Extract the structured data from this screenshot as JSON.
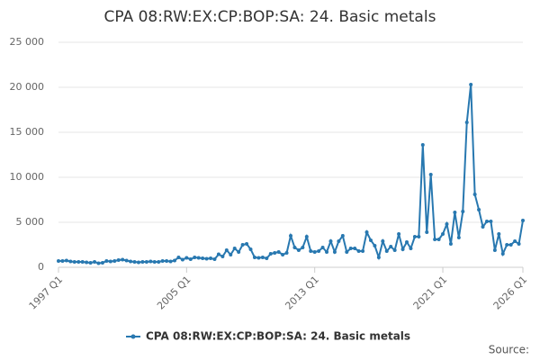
{
  "chart_data": {
    "type": "line",
    "title": "CPA 08:RW:EX:CP:BOP:SA: 24. Basic metals",
    "source": "Source:",
    "categories": [
      "1997 Q1",
      null,
      null,
      null,
      null,
      null,
      null,
      null,
      null,
      null,
      null,
      null,
      null,
      null,
      null,
      null,
      null,
      null,
      null,
      null,
      null,
      null,
      null,
      null,
      null,
      null,
      null,
      null,
      null,
      null,
      null,
      null,
      "2005 Q1",
      null,
      null,
      null,
      null,
      null,
      null,
      null,
      null,
      null,
      null,
      null,
      null,
      null,
      null,
      null,
      null,
      null,
      null,
      null,
      null,
      null,
      null,
      null,
      null,
      null,
      null,
      null,
      null,
      null,
      null,
      null,
      "2013 Q1",
      null,
      null,
      null,
      null,
      null,
      null,
      null,
      null,
      null,
      null,
      null,
      null,
      null,
      null,
      null,
      null,
      null,
      null,
      null,
      null,
      null,
      null,
      null,
      null,
      null,
      null,
      null,
      null,
      null,
      null,
      null,
      "2021 Q1",
      null,
      null,
      null,
      null,
      null,
      null,
      null,
      null,
      null,
      null,
      null,
      null,
      null,
      null,
      null,
      null,
      null,
      null,
      null,
      "2026 Q1"
    ],
    "series": [
      {
        "name": "CPA 08:RW:EX:CP:BOP:SA: 24. Basic metals",
        "color": "#2878b0",
        "values": [
          700,
          700,
          750,
          650,
          600,
          600,
          600,
          550,
          500,
          600,
          450,
          500,
          700,
          650,
          700,
          800,
          850,
          750,
          650,
          600,
          550,
          600,
          600,
          650,
          600,
          600,
          700,
          700,
          650,
          750,
          1100,
          850,
          1050,
          900,
          1100,
          1050,
          1000,
          950,
          1000,
          900,
          1450,
          1200,
          1900,
          1400,
          2100,
          1700,
          2500,
          2600,
          2000,
          1100,
          1050,
          1100,
          1000,
          1500,
          1600,
          1700,
          1400,
          1600,
          3500,
          2200,
          1900,
          2200,
          3400,
          1800,
          1700,
          1800,
          2200,
          1700,
          2900,
          1700,
          2900,
          3500,
          1700,
          2100,
          2100,
          1800,
          1800,
          3900,
          3000,
          2400,
          1100,
          2900,
          1800,
          2300,
          1900,
          3700,
          2000,
          2800,
          2100,
          3400,
          3400,
          13600,
          3900,
          10300,
          3100,
          3100,
          3700,
          4800,
          2600,
          6100,
          3300,
          6200,
          16100,
          20300,
          8100,
          6400,
          4500,
          5100,
          5100,
          1900,
          3700,
          1500,
          2500,
          2500,
          2900,
          2600,
          5200
        ]
      }
    ],
    "ylim": [
      0,
      25000
    ],
    "yticks": [
      0,
      {
        "value": 5000,
        "label": "5 000"
      },
      {
        "value": 10000,
        "label": "10 000"
      },
      {
        "value": 15000,
        "label": "15 000"
      },
      {
        "value": 20000,
        "label": "20 000"
      },
      {
        "value": 25000,
        "label": "25 000"
      }
    ],
    "grid": true
  }
}
